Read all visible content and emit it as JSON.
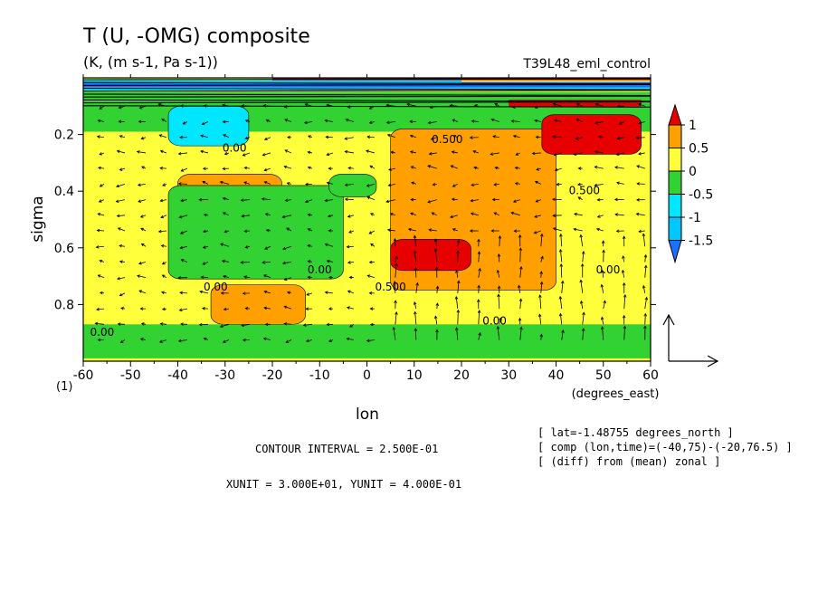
{
  "colors": {
    "lt_neg_1_5": "#1e6eff",
    "neg_1_5_to_neg_1": "#00c8ff",
    "neg_1_to_neg_0_5": "#00e6ff",
    "neg_0_5_to_0": "#32d232",
    "zero_to_0_5": "#ffff3c",
    "p0_5_to_1": "#ffa000",
    "gt_1": "#e60000"
  },
  "chart_data": {
    "type": "heatmap",
    "title": "T (U, -OMG) composite",
    "subtitle": "(K, (m s-1, Pa s-1))",
    "run_label": "T39L48_eml_control",
    "xlabel": "lon",
    "xunits": "(degrees_east)",
    "ylabel": "sigma",
    "xlim": [
      -60,
      60
    ],
    "ylim": [
      1.0,
      0.0
    ],
    "xticks": [
      -60,
      -50,
      -40,
      -30,
      -20,
      -10,
      0,
      10,
      20,
      30,
      40,
      50,
      60
    ],
    "xtick_labels": [
      "-60",
      "-50",
      "-40",
      "-30",
      "-20",
      "-10",
      "0",
      "10",
      "20",
      "30",
      "40",
      "50",
      "60"
    ],
    "yticks": [
      0.2,
      0.4,
      0.6,
      0.8
    ],
    "ytick_labels": [
      "0.2",
      "0.4",
      "0.6",
      "0.8"
    ],
    "y_corner_label": "(1)",
    "colorbar": {
      "levels": [
        "1",
        "0.5",
        "0",
        "-0.5",
        "-1",
        "-1.5"
      ],
      "ticks": [
        1,
        0.5,
        0,
        -0.5,
        -1,
        -1.5
      ]
    },
    "contour_labels": [
      {
        "text": "0.00",
        "lon": -28,
        "sigma": 0.26
      },
      {
        "text": "0.500",
        "lon": 17,
        "sigma": 0.23
      },
      {
        "text": "0.500",
        "lon": 46,
        "sigma": 0.41
      },
      {
        "text": "0.00",
        "lon": 51,
        "sigma": 0.69
      },
      {
        "text": "0.00",
        "lon": -10,
        "sigma": 0.69
      },
      {
        "text": "0.00",
        "lon": -32,
        "sigma": 0.75
      },
      {
        "text": "0.500",
        "lon": 5,
        "sigma": 0.75
      },
      {
        "text": "0.00",
        "lon": 27,
        "sigma": 0.87
      },
      {
        "text": "0.00",
        "lon": -56,
        "sigma": 0.91
      }
    ],
    "field_regions": [
      {
        "level": "neg_0_5_to_0",
        "lon": [
          -60,
          60
        ],
        "sigma": [
          0.05,
          0.21
        ]
      },
      {
        "level": "zero_to_0_5",
        "lon": [
          -60,
          60
        ],
        "sigma": [
          0.19,
          0.95
        ]
      },
      {
        "level": "neg_1_to_neg_0_5",
        "lon": [
          -42,
          -25
        ],
        "sigma": [
          0.1,
          0.24
        ]
      },
      {
        "level": "p0_5_to_1",
        "lon": [
          5,
          40
        ],
        "sigma": [
          0.18,
          0.75
        ]
      },
      {
        "level": "gt_1",
        "lon": [
          37,
          58
        ],
        "sigma": [
          0.13,
          0.27
        ]
      },
      {
        "level": "gt_1",
        "lon": [
          5,
          22
        ],
        "sigma": [
          0.57,
          0.68
        ]
      },
      {
        "level": "p0_5_to_1",
        "lon": [
          -40,
          -18
        ],
        "sigma": [
          0.34,
          0.46
        ]
      },
      {
        "level": "p0_5_to_1",
        "lon": [
          -33,
          -13
        ],
        "sigma": [
          0.73,
          0.87
        ]
      },
      {
        "level": "neg_0_5_to_0",
        "lon": [
          -42,
          -5
        ],
        "sigma": [
          0.38,
          0.71
        ]
      },
      {
        "level": "neg_0_5_to_0",
        "lon": [
          -60,
          60
        ],
        "sigma": [
          0.87,
          0.99
        ]
      },
      {
        "level": "neg_0_5_to_0",
        "lon": [
          -8,
          2
        ],
        "sigma": [
          0.34,
          0.42
        ]
      }
    ],
    "reference_vector": {
      "x": 3.0,
      "y": 0.4
    },
    "info": {
      "contour_interval": "CONTOUR INTERVAL = 2.500E-01",
      "units": "XUNIT = 3.000E+01, YUNIT = 4.000E-01",
      "lat": "[ lat=-1.48755 degrees_north ]",
      "comp": "[ comp (lon,time)=(-40,75)-(-20,76.5) ]",
      "diff": "[ (diff) from (mean) zonal ]"
    },
    "grid": false,
    "legend_position": "right"
  }
}
